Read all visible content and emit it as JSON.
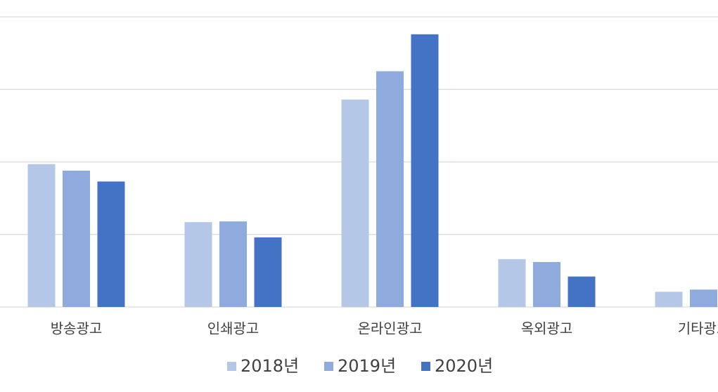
{
  "chart_data": {
    "type": "bar",
    "categories": [
      "방송광고",
      "인쇄광고",
      "온라인광고",
      "옥외광고",
      "기타광고"
    ],
    "series": [
      {
        "name": "2018년",
        "color": "#b4c7e7",
        "values": [
          1.97,
          1.17,
          2.86,
          0.66,
          0.21
        ]
      },
      {
        "name": "2019년",
        "color": "#8faadc",
        "values": [
          1.88,
          1.18,
          3.25,
          0.62,
          0.24
        ]
      },
      {
        "name": "2020년",
        "color": "#4472c4",
        "values": [
          1.73,
          0.96,
          3.76,
          0.42,
          null
        ]
      }
    ],
    "ylim": [
      0,
      4
    ],
    "yticks": [
      0,
      1,
      2,
      3,
      4
    ],
    "grid": true,
    "legend": "bottom"
  }
}
